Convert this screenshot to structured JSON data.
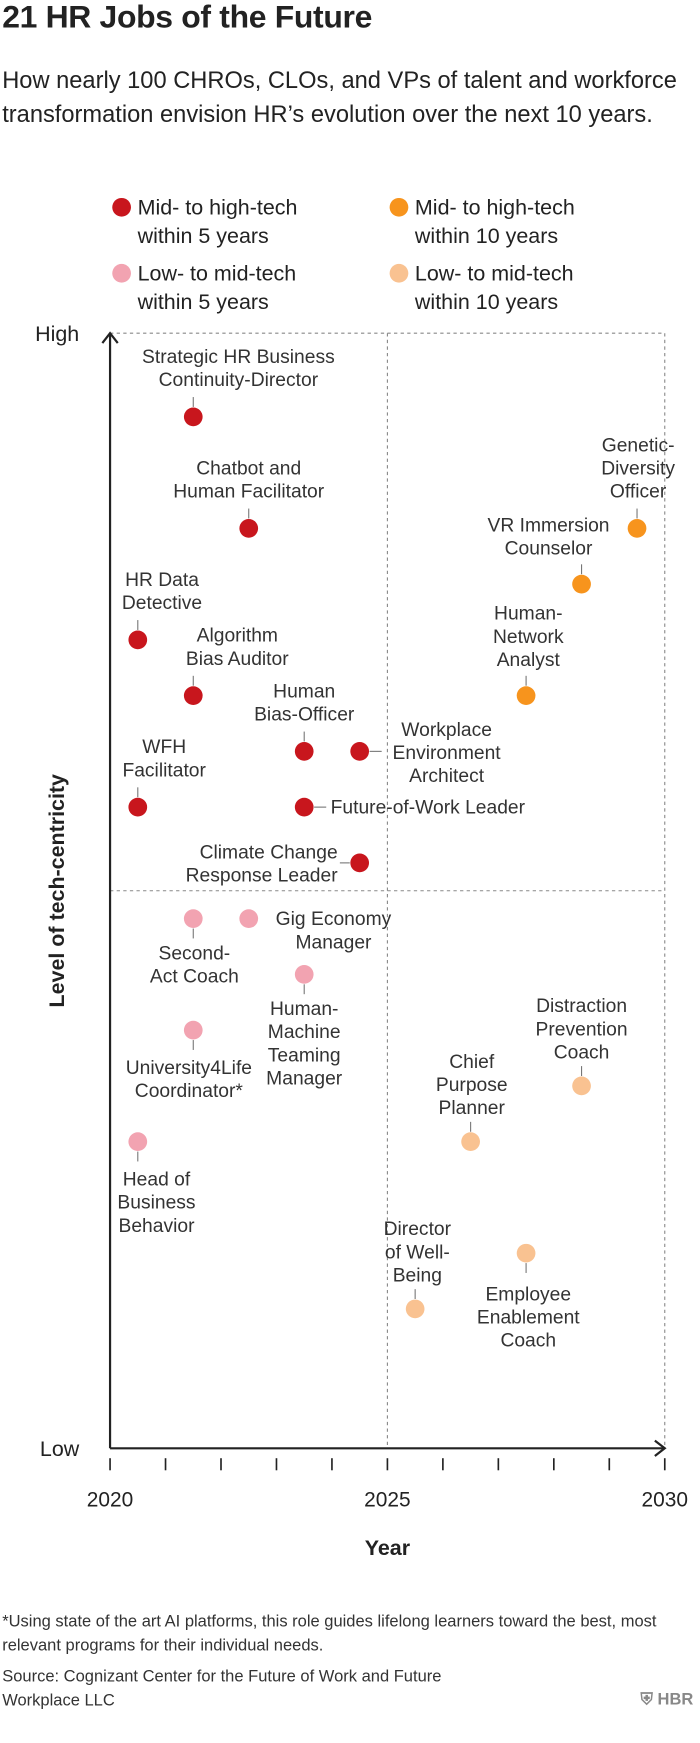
{
  "chart_data": {
    "type": "scatter",
    "title": "21 HR Jobs of the Future",
    "subtitle": "How nearly 100 CHROs, CLOs, and VPs of talent and workforce transformation envision HR’s evolution over the next 10 years.",
    "x_label": "Year",
    "y_label": "Level of tech-centricity",
    "xlim": [
      2020,
      2030
    ],
    "ylim": [
      0,
      10
    ],
    "xticks": [
      2020,
      2025,
      2030
    ],
    "x_minor_ticks": [
      2021,
      2022,
      2023,
      2024,
      2026,
      2027,
      2028,
      2029
    ],
    "yticks": [
      {
        "value": 0,
        "label": "Low"
      },
      {
        "value": 10,
        "label": "High"
      }
    ],
    "quadrant_lines": {
      "x": [
        2025,
        2030
      ],
      "y": [
        5,
        10
      ]
    },
    "series": [
      {
        "name": "Mid- to high-tech within 5 years",
        "color": "#c8161d",
        "x": [
          2021.5,
          2022.5,
          2020.5,
          2021.5,
          2023.5,
          2024.5,
          2020.5,
          2023.5,
          2024.5
        ],
        "values": [
          9.25,
          8.25,
          7.25,
          6.75,
          6.25,
          6.25,
          5.75,
          5.75,
          5.25
        ],
        "labels": [
          [
            "Strategic HR Business",
            "Continuity-Director"
          ],
          [
            "Chatbot and",
            "Human Facilitator"
          ],
          [
            "HR Data",
            "Detective"
          ],
          [
            "Algorithm",
            "Bias Auditor"
          ],
          [
            "Human",
            "Bias-Officer"
          ],
          [
            "Workplace",
            "Environment",
            "Architect"
          ],
          [
            "WFH",
            "Facilitator"
          ],
          [
            "Future-of-Work Leader"
          ],
          [
            "Climate Change",
            "Response Leader"
          ]
        ]
      },
      {
        "name": "Low- to mid-tech within 5 years",
        "color": "#f2a3b1",
        "x": [
          2021.5,
          2022.5,
          2023.5,
          2021.5,
          2020.5
        ],
        "values": [
          4.75,
          4.75,
          4.25,
          3.75,
          2.75
        ],
        "labels": [
          [
            "Second-",
            "Act Coach"
          ],
          [
            "Gig Economy",
            "Manager"
          ],
          [
            "Human-",
            "Machine",
            "Teaming",
            "Manager"
          ],
          [
            "University4Life",
            "Coordinator*"
          ],
          [
            "Head of",
            "Business",
            "Behavior"
          ]
        ]
      },
      {
        "name": "Mid- to high-tech within 10 years",
        "color": "#f7941d",
        "x": [
          2029.5,
          2028.5,
          2027.5
        ],
        "values": [
          8.25,
          7.75,
          6.75
        ],
        "labels": [
          [
            "Genetic-",
            "Diversity",
            "Officer"
          ],
          [
            "VR Immersion",
            "Counselor"
          ],
          [
            "Human-",
            "Network",
            "Analyst"
          ]
        ]
      },
      {
        "name": "Low- to mid-tech within 10 years",
        "color": "#f9c291",
        "x": [
          2028.5,
          2026.5,
          2027.5,
          2025.5
        ],
        "values": [
          3.25,
          2.75,
          1.75,
          1.25
        ],
        "labels": [
          [
            "Distraction",
            "Prevention",
            "Coach"
          ],
          [
            "Chief",
            "Purpose",
            "Planner"
          ],
          [
            "Employee",
            "Enablement",
            "Coach"
          ],
          [
            "Director",
            "of Well-",
            "Being"
          ]
        ]
      }
    ],
    "footnote": "*Using state of the art AI platforms, this role guides lifelong learners toward the best, most relevant programs for their individual needs.",
    "source": "Source: Cognizant Center for the Future of Work and Future Workplace LLC",
    "publisher": "HBR"
  }
}
